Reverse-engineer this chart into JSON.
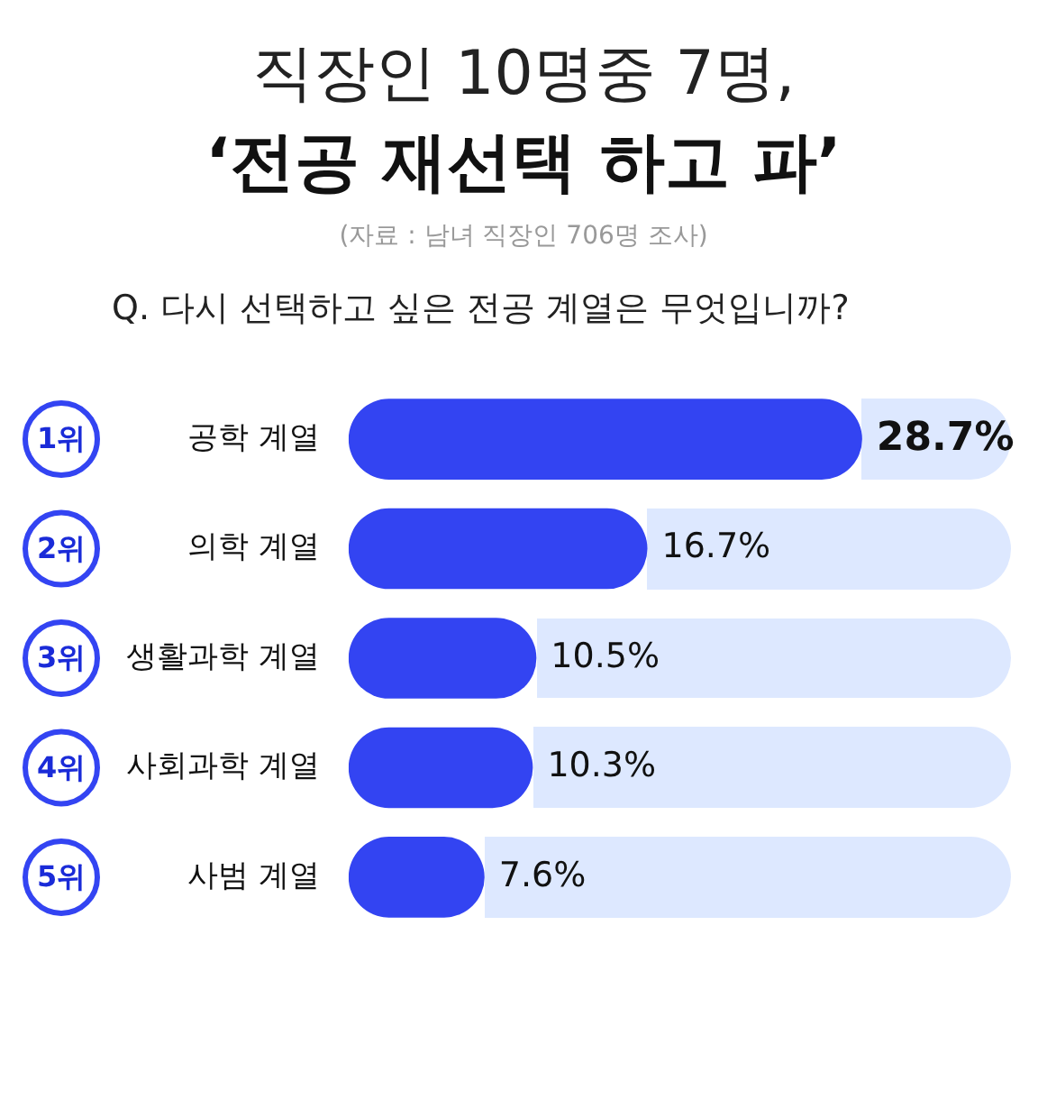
{
  "chart_data": {
    "type": "bar",
    "orientation": "horizontal",
    "title": "직장인 10명중 7명,",
    "subtitle": "‘전공 재선택 하고 파’",
    "categories": [
      "공학 계열",
      "의학 계열",
      "생활과학 계열",
      "사회과학 계열",
      "사범 계열"
    ],
    "values": [
      28.7,
      16.7,
      10.5,
      10.3,
      7.6
    ],
    "value_labels": [
      "28.7%",
      "16.7%",
      "10.5%",
      "10.3%",
      "7.6%"
    ],
    "color": "#3344f2",
    "annotations": [
      "(자료 : 남녀 직장인 706명 조사)",
      "Q. 다시 선택하고 싶은 전공 계열은 무엇입니까?",
      "1위",
      "2위",
      "3위",
      "4위",
      "5위"
    ],
    "grid": false,
    "legend": false
  }
}
